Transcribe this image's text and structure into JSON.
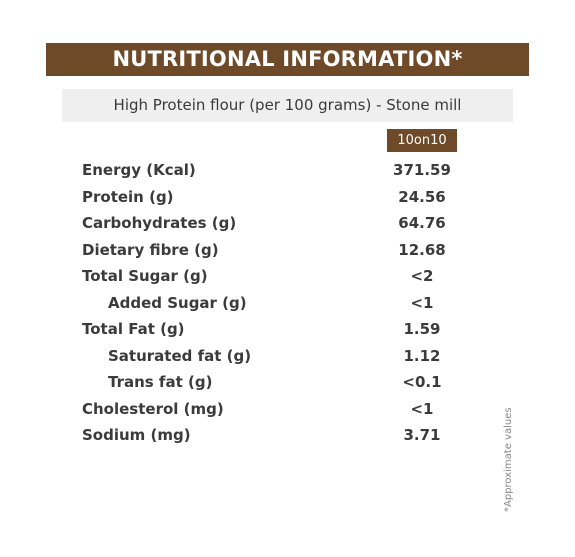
{
  "title": "NUTRITIONAL INFORMATION*",
  "subtitle": "High Protein flour (per 100 grams) - Stone mill",
  "column_header": "10on10",
  "rows": [
    {
      "label": "Energy (Kcal)",
      "value": "371.59"
    },
    {
      "label": "Protein (g)",
      "value": "24.56"
    },
    {
      "label": "Carbohydrates (g)",
      "value": "64.76"
    },
    {
      "label": "Dietary fibre (g)",
      "value": "12.68"
    },
    {
      "label": "Total Sugar (g)",
      "value": "<2"
    },
    {
      "label": "Added Sugar (g)",
      "value": "<1"
    },
    {
      "label": "Total Fat (g)",
      "value": "1.59"
    },
    {
      "label": "Saturated fat (g)",
      "value": "1.12"
    },
    {
      "label": "Trans fat (g)",
      "value": "<0.1"
    },
    {
      "label": "Cholesterol (mg)",
      "value": "<1"
    },
    {
      "label": "Sodium (mg)",
      "value": "3.71"
    }
  ],
  "footnote": "*Approximate values",
  "colors": {
    "brand_brown": "#6f4a29",
    "subtitle_bg": "#efefef",
    "text": "#3b3b3b"
  }
}
